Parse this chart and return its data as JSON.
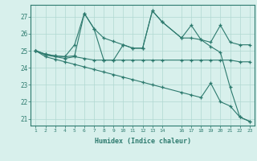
{
  "xlabel": "Humidex (Indice chaleur)",
  "x": [
    1,
    2,
    3,
    4,
    5,
    6,
    7,
    8,
    9,
    10,
    11,
    12,
    13,
    14,
    16,
    17,
    18,
    19,
    20,
    21,
    22,
    23
  ],
  "line1": [
    25.0,
    24.8,
    24.7,
    24.65,
    25.35,
    27.2,
    26.3,
    25.75,
    25.55,
    25.35,
    25.15,
    25.15,
    27.35,
    26.7,
    25.75,
    25.75,
    25.65,
    25.5,
    26.5,
    25.5,
    25.35,
    25.35
  ],
  "line2": [
    25.0,
    24.8,
    24.7,
    24.65,
    24.7,
    27.2,
    26.3,
    24.45,
    24.45,
    25.35,
    25.15,
    25.15,
    27.35,
    26.7,
    25.75,
    26.5,
    25.65,
    25.25,
    24.9,
    22.85,
    21.1,
    20.85
  ],
  "line3": [
    25.0,
    24.75,
    24.65,
    24.55,
    24.65,
    24.55,
    24.45,
    24.45,
    24.45,
    24.45,
    24.45,
    24.45,
    24.45,
    24.45,
    24.45,
    24.45,
    24.45,
    24.45,
    24.45,
    24.45,
    24.35,
    24.35
  ],
  "line4": [
    25.0,
    24.65,
    24.5,
    24.35,
    24.2,
    24.05,
    23.9,
    23.75,
    23.6,
    23.45,
    23.3,
    23.15,
    23.0,
    22.85,
    22.55,
    22.4,
    22.25,
    23.1,
    22.0,
    21.75,
    21.1,
    20.85
  ],
  "color": "#2d7a6e",
  "bg_color": "#d8f0ec",
  "grid_color": "#b0d8d2",
  "yticks": [
    21,
    22,
    23,
    24,
    25,
    26,
    27
  ],
  "ylim": [
    20.6,
    27.7
  ],
  "xlim": [
    0.5,
    23.5
  ]
}
